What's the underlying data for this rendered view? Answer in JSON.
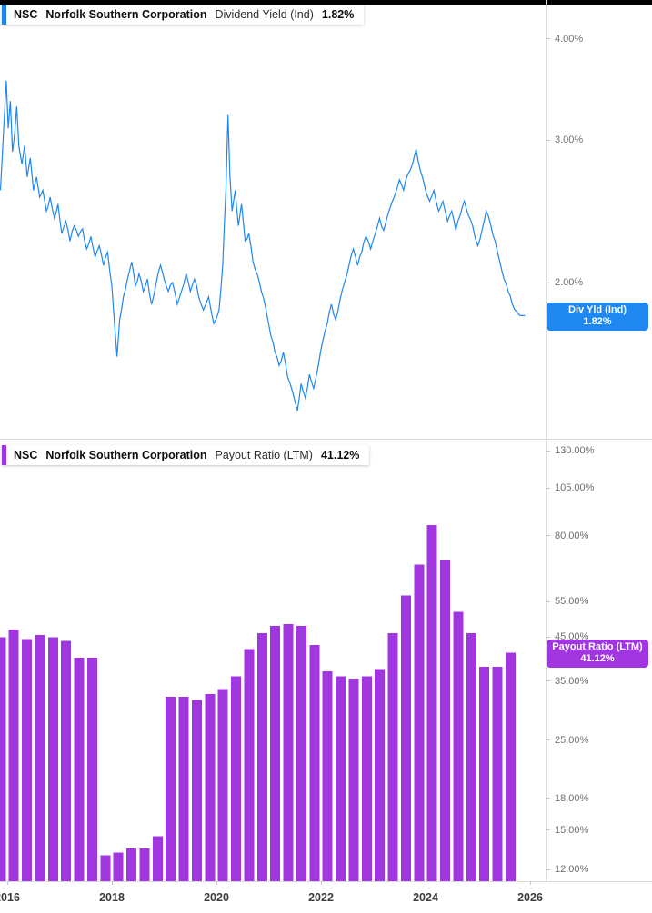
{
  "colors": {
    "line_blue": "#1e87f0",
    "bar_purple": "#a136e0",
    "axis_text": "#6e6e6e",
    "x_label_text": "#3c3c3c",
    "top_border": "#000000"
  },
  "panels": [
    {
      "legend": {
        "ticker": "NSC",
        "company": "Norfolk Southern Corporation",
        "metric": "Dividend Yield (Ind)",
        "value": "1.82%",
        "accent": "#1e87f0"
      },
      "badge": {
        "line1": "Div Yld (Ind)",
        "line2": "1.82%",
        "value": 1.82,
        "color": "#1e87f0"
      },
      "y_ticks": [
        {
          "value": 4,
          "label": "4.00%"
        },
        {
          "value": 3,
          "label": "3.00%"
        },
        {
          "value": 2,
          "label": "2.00%"
        }
      ]
    },
    {
      "legend": {
        "ticker": "NSC",
        "company": "Norfolk Southern Corporation",
        "metric": "Payout Ratio (LTM)",
        "value": "41.12%",
        "accent": "#a136e0"
      },
      "badge": {
        "line1": "Payout Ratio (LTM)",
        "line2": "41.12%",
        "value": 41.12,
        "color": "#a136e0"
      },
      "y_ticks": [
        {
          "value": 130,
          "label": "130.00%"
        },
        {
          "value": 105,
          "label": "105.00%"
        },
        {
          "value": 80,
          "label": "80.00%"
        },
        {
          "value": 55,
          "label": "55.00%"
        },
        {
          "value": 45,
          "label": "45.00%"
        },
        {
          "value": 35,
          "label": "35.00%"
        },
        {
          "value": 25,
          "label": "25.00%"
        },
        {
          "value": 18,
          "label": "18.00%"
        },
        {
          "value": 15,
          "label": "15.00%"
        },
        {
          "value": 12,
          "label": "12.00%"
        }
      ]
    }
  ],
  "x_axis": {
    "labels": [
      {
        "year": 2016,
        "label": "2016"
      },
      {
        "year": 2018,
        "label": "2018"
      },
      {
        "year": 2020,
        "label": "2020"
      },
      {
        "year": 2022,
        "label": "2022"
      },
      {
        "year": 2024,
        "label": "2024"
      },
      {
        "year": 2026,
        "label": "2026"
      }
    ]
  },
  "chart_data": [
    {
      "type": "line",
      "title": "NSC Norfolk Southern Corporation — Dividend Yield (Ind)",
      "unit": "%",
      "y_scale": "log",
      "current_value": 1.82,
      "color": "#1e87f0",
      "yticks": [
        2,
        3,
        4
      ],
      "x_range": [
        2015.87,
        2025.9
      ],
      "x": [
        2015.87,
        2015.92,
        2015.98,
        2016.02,
        2016.06,
        2016.1,
        2016.14,
        2016.18,
        2016.22,
        2016.28,
        2016.33,
        2016.38,
        2016.44,
        2016.5,
        2016.56,
        2016.62,
        2016.68,
        2016.75,
        2016.82,
        2016.9,
        2016.97,
        2017.04,
        2017.12,
        2017.2,
        2017.28,
        2017.36,
        2017.44,
        2017.52,
        2017.6,
        2017.68,
        2017.76,
        2017.84,
        2017.92,
        2018.0,
        2018.06,
        2018.1,
        2018.15,
        2018.22,
        2018.3,
        2018.38,
        2018.45,
        2018.52,
        2018.6,
        2018.68,
        2018.76,
        2018.85,
        2018.93,
        2019.0,
        2019.08,
        2019.16,
        2019.25,
        2019.33,
        2019.42,
        2019.5,
        2019.58,
        2019.66,
        2019.75,
        2019.85,
        2019.95,
        2020.05,
        2020.12,
        2020.18,
        2020.22,
        2020.26,
        2020.3,
        2020.36,
        2020.42,
        2020.48,
        2020.55,
        2020.62,
        2020.7,
        2020.78,
        2020.86,
        2020.95,
        2021.04,
        2021.12,
        2021.2,
        2021.28,
        2021.36,
        2021.45,
        2021.55,
        2021.62,
        2021.7,
        2021.78,
        2021.86,
        2021.95,
        2022.04,
        2022.12,
        2022.2,
        2022.28,
        2022.36,
        2022.45,
        2022.55,
        2022.62,
        2022.7,
        2022.78,
        2022.86,
        2022.95,
        2023.04,
        2023.12,
        2023.2,
        2023.3,
        2023.4,
        2023.5,
        2023.58,
        2023.66,
        2023.75,
        2023.82,
        2023.9,
        2024.0,
        2024.08,
        2024.16,
        2024.25,
        2024.33,
        2024.42,
        2024.5,
        2024.58,
        2024.66,
        2024.74,
        2024.82,
        2024.9,
        2025.0,
        2025.08,
        2025.16,
        2025.25,
        2025.33,
        2025.42,
        2025.5,
        2025.58,
        2025.66,
        2025.75,
        2025.82,
        2025.9
      ],
      "values": [
        2.6,
        3.0,
        3.55,
        3.1,
        3.35,
        2.9,
        3.05,
        3.3,
        2.95,
        2.8,
        2.95,
        2.7,
        2.85,
        2.6,
        2.7,
        2.55,
        2.6,
        2.45,
        2.55,
        2.4,
        2.5,
        2.3,
        2.38,
        2.25,
        2.35,
        2.28,
        2.33,
        2.2,
        2.28,
        2.15,
        2.22,
        2.1,
        2.18,
        1.98,
        1.75,
        1.62,
        1.8,
        1.92,
        2.02,
        2.12,
        1.98,
        2.05,
        1.95,
        2.02,
        1.88,
        2.0,
        2.1,
        2.02,
        1.95,
        2.0,
        1.88,
        1.95,
        2.05,
        1.95,
        2.02,
        1.92,
        1.85,
        1.92,
        1.78,
        1.85,
        2.1,
        2.6,
        3.22,
        2.7,
        2.45,
        2.6,
        2.35,
        2.5,
        2.25,
        2.3,
        2.12,
        2.05,
        1.95,
        1.85,
        1.72,
        1.64,
        1.58,
        1.64,
        1.53,
        1.47,
        1.39,
        1.5,
        1.44,
        1.54,
        1.48,
        1.58,
        1.7,
        1.78,
        1.88,
        1.8,
        1.9,
        2.0,
        2.12,
        2.2,
        2.1,
        2.18,
        2.28,
        2.2,
        2.3,
        2.4,
        2.32,
        2.45,
        2.55,
        2.68,
        2.6,
        2.72,
        2.8,
        2.92,
        2.75,
        2.6,
        2.52,
        2.6,
        2.45,
        2.52,
        2.38,
        2.45,
        2.32,
        2.42,
        2.52,
        2.42,
        2.35,
        2.22,
        2.32,
        2.45,
        2.35,
        2.25,
        2.12,
        2.02,
        1.95,
        1.88,
        1.84,
        1.82,
        1.82
      ]
    },
    {
      "type": "bar",
      "title": "NSC Norfolk Southern Corporation — Payout Ratio (LTM)",
      "unit": "%",
      "y_scale": "log",
      "current_value": 41.12,
      "color": "#a136e0",
      "yticks": [
        12,
        15,
        18,
        25,
        35,
        45,
        55,
        80,
        105,
        130
      ],
      "categories": [
        "2015Q4",
        "2016Q1",
        "2016Q2",
        "2016Q3",
        "2016Q4",
        "2017Q1",
        "2017Q2",
        "2017Q3",
        "2017Q4",
        "2018Q1",
        "2018Q2",
        "2018Q3",
        "2018Q4",
        "2019Q1",
        "2019Q2",
        "2019Q3",
        "2019Q4",
        "2020Q1",
        "2020Q2",
        "2020Q3",
        "2020Q4",
        "2021Q1",
        "2021Q2",
        "2021Q3",
        "2021Q4",
        "2022Q1",
        "2022Q2",
        "2022Q3",
        "2022Q4",
        "2023Q1",
        "2023Q2",
        "2023Q3",
        "2023Q4",
        "2024Q1",
        "2024Q2",
        "2024Q3",
        "2024Q4",
        "2025Q1",
        "2025Q2",
        "2025Q3"
      ],
      "values": [
        45,
        47,
        44.5,
        45.5,
        45,
        44,
        40,
        40,
        13,
        13.2,
        13.5,
        13.5,
        14.5,
        32,
        32,
        31.5,
        32.5,
        33.5,
        36,
        42,
        46,
        48,
        48.5,
        48,
        43,
        37,
        36,
        35.5,
        36,
        37.5,
        46,
        57,
        68,
        85,
        70,
        52,
        46,
        38,
        38,
        41.12
      ]
    }
  ]
}
